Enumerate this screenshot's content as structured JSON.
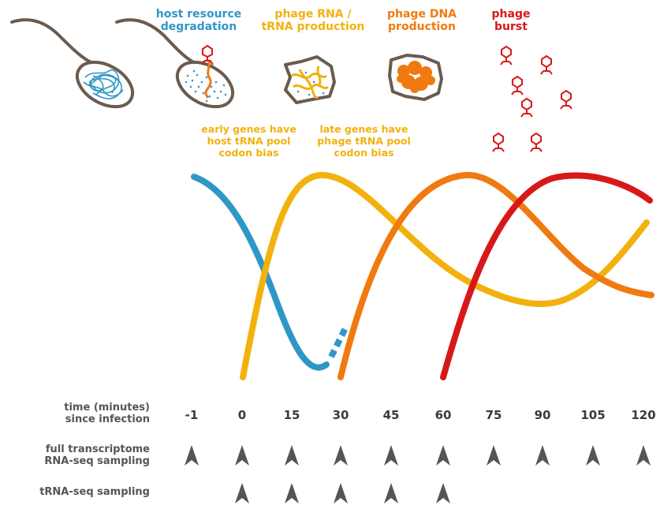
{
  "colors": {
    "host": "#2f97c7",
    "phage_rna": "#f2b10d",
    "phage_dna": "#f07a10",
    "burst": "#d81818",
    "cell_outline": "#6b5b4e",
    "text_dark": "#3a3a3a",
    "text_grey": "#555555",
    "arrow": "#555555"
  },
  "stages": [
    {
      "key": "host",
      "text": "host resource\ndegradation"
    },
    {
      "key": "rna",
      "text": "phage RNA /\ntRNA production"
    },
    {
      "key": "dna",
      "text": "phage DNA\nproduction"
    },
    {
      "key": "burst",
      "text": "phage\nburst"
    }
  ],
  "notes": {
    "early": "early genes have\nhost tRNA pool\ncodon bias",
    "late": "late genes have\nphage tRNA pool\ncodon bias"
  },
  "timeline": {
    "time_label": "time (minutes)\nsince infection",
    "rnaseq_label": "full transcriptome\nRNA-seq sampling",
    "trnaseq_label": "tRNA-seq sampling",
    "times": [
      "-1",
      "0",
      "15",
      "30",
      "45",
      "60",
      "75",
      "90",
      "105",
      "120"
    ],
    "rnaseq_samples": [
      "-1",
      "0",
      "15",
      "30",
      "45",
      "60",
      "75",
      "90",
      "105",
      "120"
    ],
    "trnaseq_samples": [
      "0",
      "15",
      "30",
      "45",
      "60"
    ]
  },
  "icons": {
    "cell1": "bacterium-icon",
    "cell2": "infected-bacterium-icon",
    "cell3": "phage-rna-cell-icon",
    "cell4": "phage-dna-cell-icon",
    "phages": "phage-particle-icon",
    "sampling": "sampling-arrowhead-icon"
  }
}
